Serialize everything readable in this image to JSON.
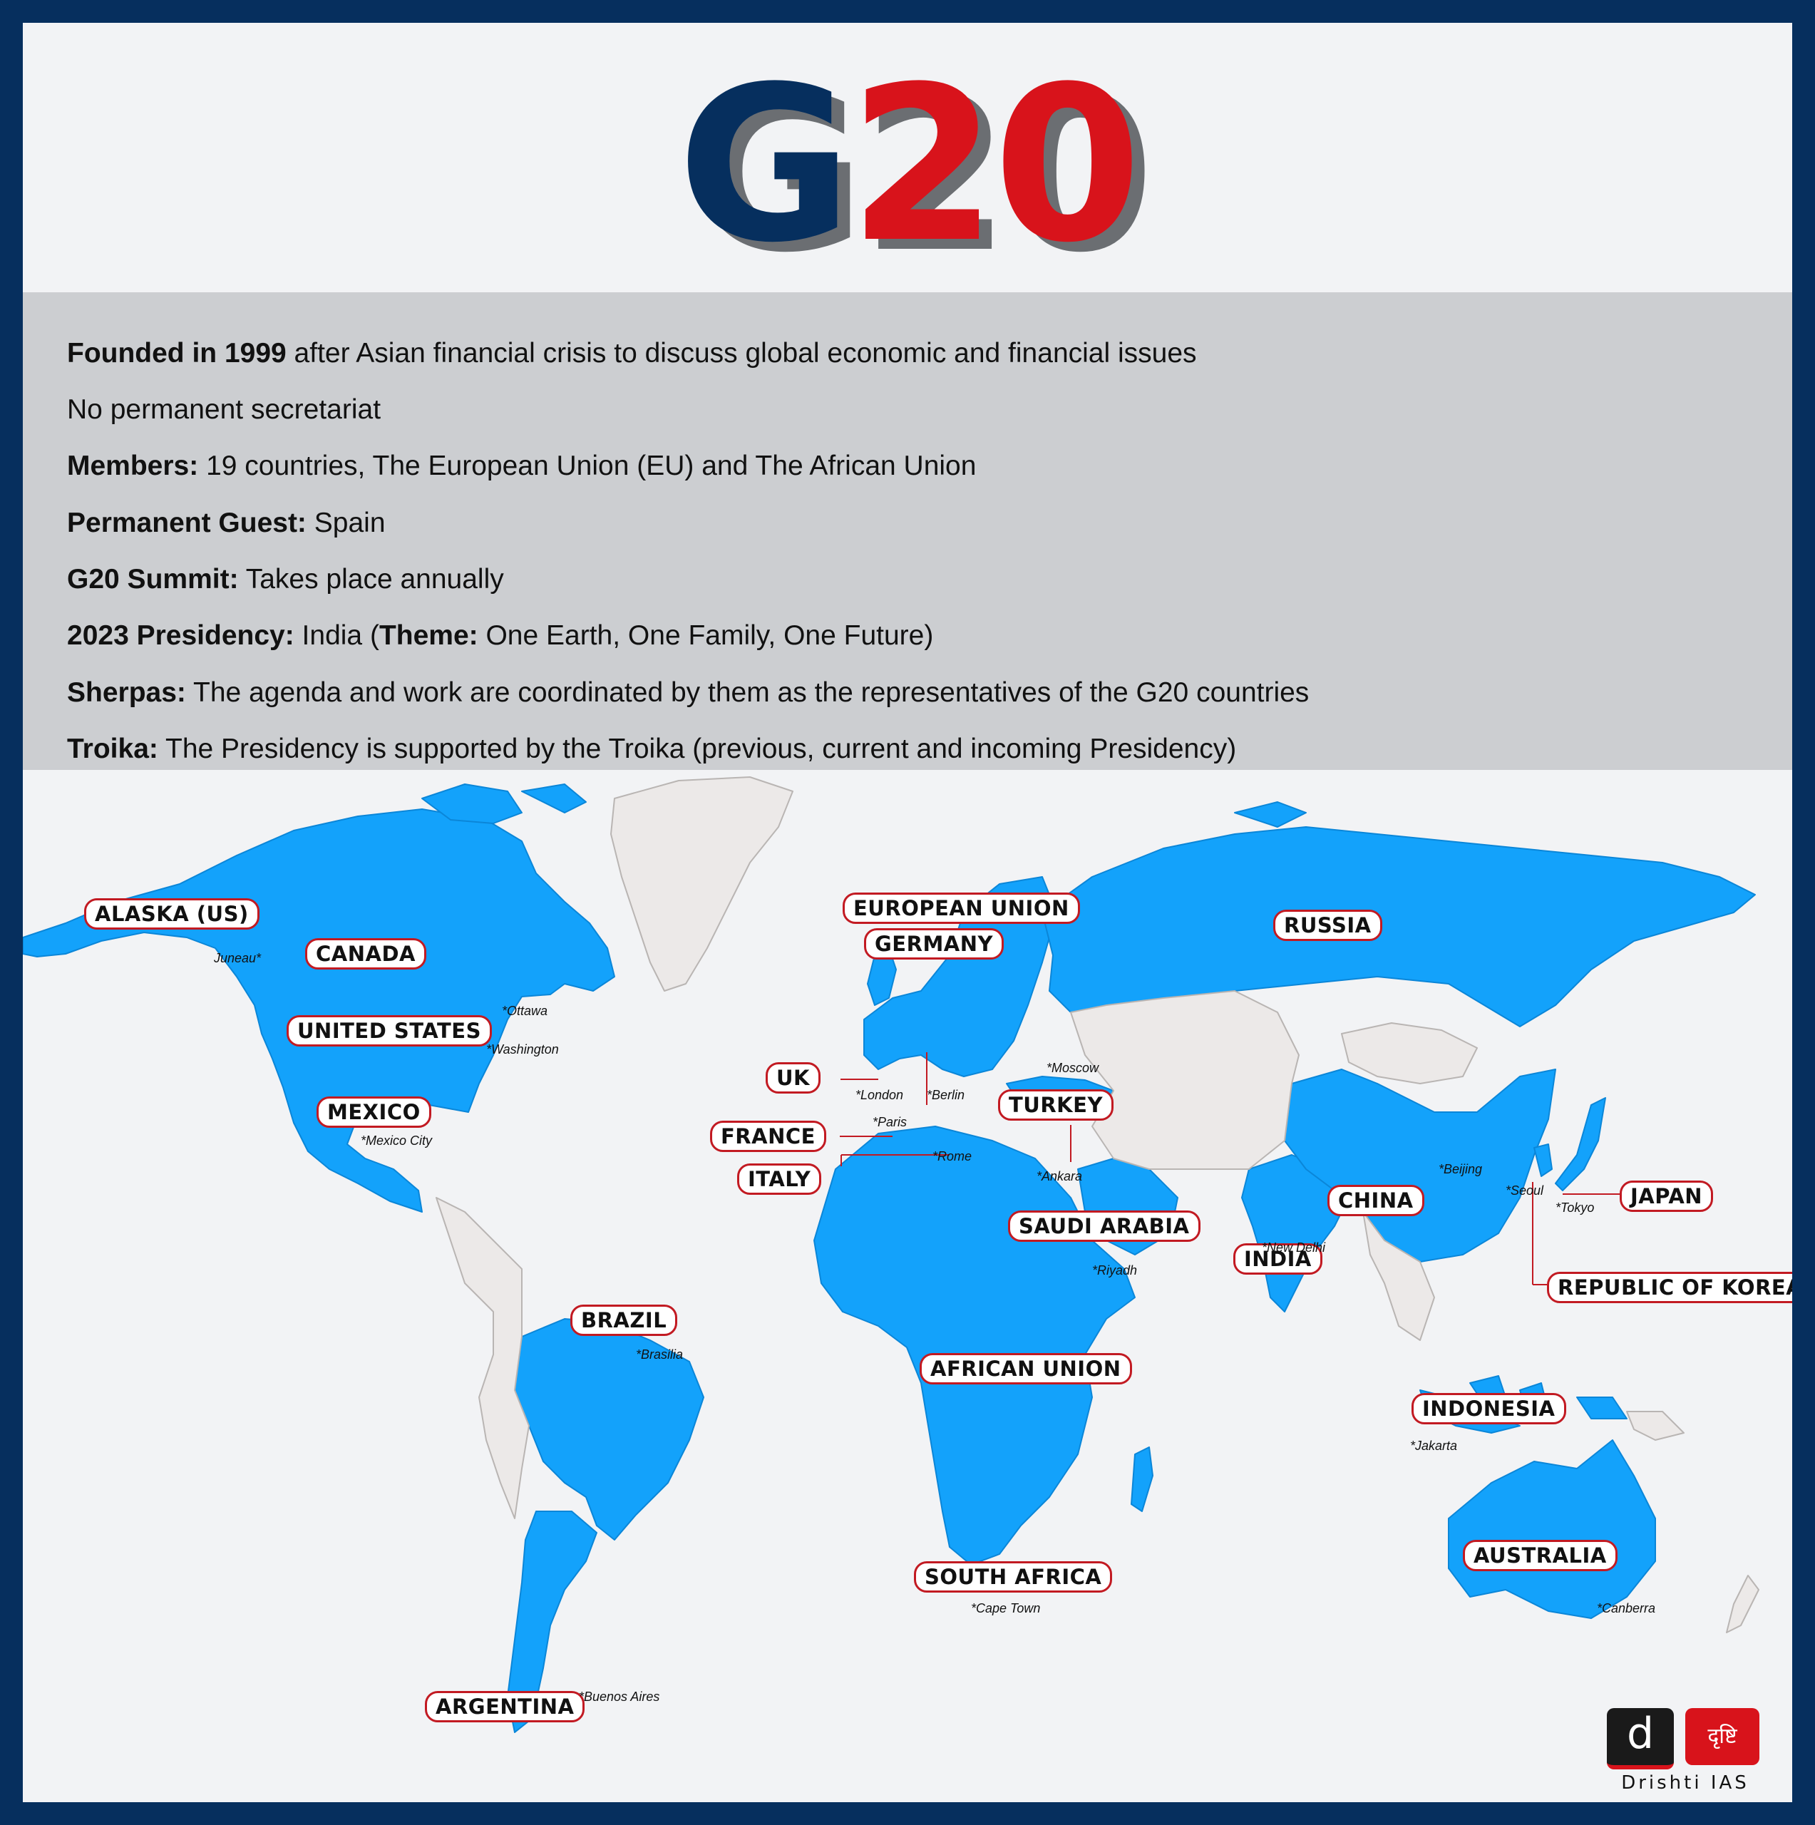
{
  "title": {
    "g": "G",
    "num": "20"
  },
  "facts": [
    {
      "bold": "Founded in 1999",
      "text": " after Asian financial crisis to discuss global economic and financial issues"
    },
    {
      "bold": "",
      "text": "No permanent secretariat"
    },
    {
      "bold": "Members:",
      "text": " 19 countries, The European Union (EU) and The African Union"
    },
    {
      "bold": "Permanent Guest:",
      "text": " Spain"
    },
    {
      "bold": "G20 Summit:",
      "text": " Takes place annually"
    },
    {
      "bold": "2023 Presidency:",
      "text": " India (",
      "bold2": "Theme:",
      "text2": " One Earth, One Family, One Future)"
    },
    {
      "bold": "Sherpas:",
      "text": " The agenda and work are coordinated by them as the representatives of the G20 countries"
    },
    {
      "bold": "Troika:",
      "text": " The Presidency is supported by the Troika (previous, current and incoming Presidency)"
    }
  ],
  "labels": {
    "alaska": "ALASKA (US)",
    "canada": "CANADA",
    "usa": "UNITED STATES",
    "mexico": "MEXICO",
    "brazil": "BRAZIL",
    "argentina": "ARGENTINA",
    "eu": "EUROPEAN UNION",
    "germany": "GERMANY",
    "uk": "UK",
    "france": "FRANCE",
    "italy": "ITALY",
    "turkey": "TURKEY",
    "russia": "RUSSIA",
    "saudi": "SAUDI ARABIA",
    "africa": "AFRICAN UNION",
    "southafrica": "SOUTH AFRICA",
    "india": "INDIA",
    "china": "CHINA",
    "japan": "JAPAN",
    "korea": "REPUBLIC OF KOREA",
    "indonesia": "INDONESIA",
    "australia": "AUSTRALIA"
  },
  "capitals": {
    "juneau": "Juneau*",
    "ottawa": "*Ottawa",
    "washington": "*Washington",
    "mexicocity": "*Mexico City",
    "brasilia": "*Brasilia",
    "buenosaires": "*Buenos Aires",
    "london": "*London",
    "paris": "*Paris",
    "berlin": "*Berlin",
    "rome": "*Rome",
    "moscow": "*Moscow",
    "ankara": "*Ankara",
    "riyadh": "*Riyadh",
    "newdelhi": "*New Delhi",
    "beijing": "*Beijing",
    "seoul": "*Seoul",
    "tokyo": "*Tokyo",
    "jakarta": "*Jakarta",
    "capetown": "*Cape Town",
    "canberra": "*Canberra"
  },
  "logo": {
    "mark": "d",
    "hindi": "दृष्टि",
    "brand": "Drishti IAS"
  },
  "colors": {
    "frame": "#062f5e",
    "member": "#13a2fb",
    "nonmember": "#ece9e8",
    "accent": "#d8131b",
    "panel": "#ccced1"
  }
}
